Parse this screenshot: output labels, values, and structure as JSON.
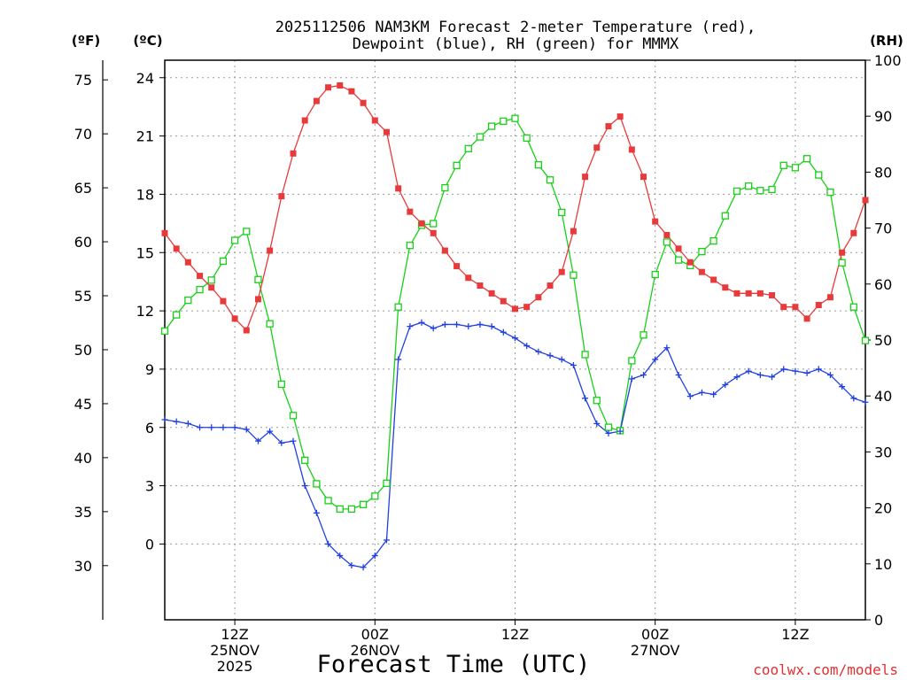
{
  "chart_data": {
    "type": "line",
    "title_line1": "2025112506 NAM3KM Forecast 2-meter Temperature (red),",
    "title_line2": "Dewpoint (blue), RH (green) for MMMX",
    "unit_f": "(ºF)",
    "unit_c": "(ºC)",
    "unit_rh": "(RH)",
    "xlabel": "Forecast Time (UTC)",
    "credit": "coolwx.com/models",
    "x_range_hours": [
      0,
      60
    ],
    "y_celsius_range": [
      -3.9,
      24.9
    ],
    "y_fahrenheit_ticks": [
      "75",
      "70",
      "65",
      "60",
      "55",
      "50",
      "45",
      "40",
      "35",
      "30"
    ],
    "y_celsius_ticks": [
      "24",
      "21",
      "18",
      "15",
      "12",
      "9",
      "6",
      "3",
      "0"
    ],
    "y_rh_ticks": [
      "100",
      "90",
      "80",
      "70",
      "60",
      "50",
      "40",
      "30",
      "20",
      "10",
      "0"
    ],
    "x_labels": [
      {
        "hour": 6,
        "lines": [
          "12Z",
          "25NOV",
          "2025"
        ]
      },
      {
        "hour": 18,
        "lines": [
          "00Z",
          "26NOV"
        ]
      },
      {
        "hour": 30,
        "lines": [
          "12Z"
        ]
      },
      {
        "hour": 42,
        "lines": [
          "00Z",
          "27NOV"
        ]
      },
      {
        "hour": 54,
        "lines": [
          "12Z"
        ]
      }
    ],
    "colors": {
      "temperature": "#e83a3a",
      "dewpoint": "#2040e0",
      "rh": "#18d018",
      "grid": "#9a9a9a"
    },
    "series": [
      {
        "name": "Temperature (°C)",
        "values": [
          16.0,
          15.2,
          14.5,
          13.8,
          13.2,
          12.5,
          11.6,
          11.0,
          12.6,
          15.1,
          17.9,
          20.1,
          21.8,
          22.8,
          23.5,
          23.6,
          23.3,
          22.7,
          21.8,
          21.2,
          18.3,
          17.1,
          16.5,
          16.0,
          15.1,
          14.3,
          13.7,
          13.3,
          12.9,
          12.5,
          12.1,
          12.2,
          12.7,
          13.3,
          14.0,
          16.1,
          18.9,
          20.4,
          21.5,
          22.0,
          20.3,
          18.9,
          16.6,
          15.9,
          15.2,
          14.5,
          14.0,
          13.6,
          13.2,
          12.9,
          12.9,
          12.9,
          12.8,
          12.2,
          12.2,
          11.6,
          12.3,
          12.7,
          15.0,
          16.0,
          17.7
        ]
      },
      {
        "name": "Dewpoint (°C)",
        "values": [
          6.4,
          6.3,
          6.2,
          6.0,
          6.0,
          6.0,
          6.0,
          5.9,
          5.3,
          5.8,
          5.2,
          5.3,
          3.0,
          1.6,
          0.0,
          -0.6,
          -1.1,
          -1.2,
          -0.6,
          0.2,
          9.5,
          11.2,
          11.4,
          11.1,
          11.3,
          11.3,
          11.2,
          11.3,
          11.2,
          10.9,
          10.6,
          10.2,
          9.9,
          9.7,
          9.5,
          9.2,
          7.5,
          6.2,
          5.7,
          5.8,
          8.5,
          8.7,
          9.5,
          10.1,
          8.7,
          7.6,
          7.8,
          7.7,
          8.2,
          8.6,
          8.9,
          8.7,
          8.6,
          9.0,
          8.9,
          8.8,
          9.0,
          8.7,
          8.1,
          7.5,
          7.3
        ]
      },
      {
        "name": "RH (%)",
        "values": [
          51.6,
          54.5,
          57.1,
          59.0,
          60.7,
          64.1,
          67.8,
          69.4,
          60.8,
          52.9,
          42.1,
          36.5,
          28.5,
          24.3,
          21.3,
          19.8,
          19.8,
          20.6,
          22.1,
          24.4,
          55.9,
          66.9,
          70.5,
          70.8,
          77.2,
          81.2,
          84.2,
          86.3,
          88.2,
          89.1,
          89.6,
          86.1,
          81.3,
          78.6,
          72.8,
          61.6,
          47.4,
          39.2,
          34.4,
          33.8,
          46.3,
          50.9,
          61.7,
          67.5,
          64.3,
          63.3,
          65.8,
          67.7,
          72.2,
          76.6,
          77.5,
          76.7,
          76.9,
          81.2,
          80.8,
          82.4,
          79.5,
          76.4,
          63.8,
          55.9,
          49.9
        ]
      }
    ]
  }
}
